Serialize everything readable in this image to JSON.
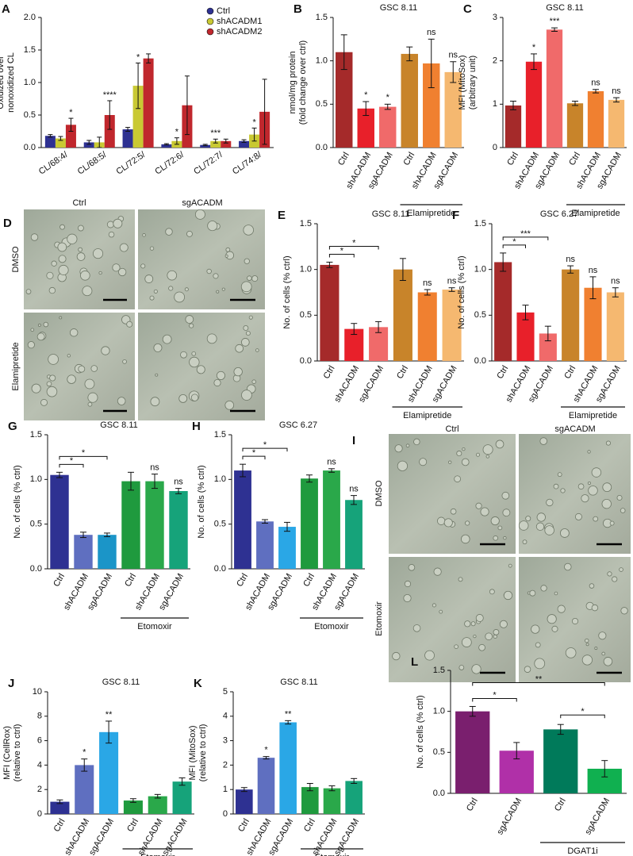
{
  "chart_data": [
    {
      "panel": "A",
      "type": "grouped-bar",
      "ylabel": [
        "Oxidized over",
        "nonoxidized CL"
      ],
      "categories": [
        "CL/68:4/",
        "CL/68:5/",
        "CL/72:5/",
        "CL/72:6/",
        "CL/72:7/",
        "CL/74:8/"
      ],
      "series": [
        {
          "name": "Ctrl",
          "color": "#2e3192",
          "values": [
            0.18,
            0.08,
            0.28,
            0.05,
            0.04,
            0.1
          ],
          "errors": [
            0.02,
            0.03,
            0.03,
            0.01,
            0.01,
            0.02
          ],
          "sig_labels": [
            null,
            null,
            null,
            null,
            null,
            null
          ]
        },
        {
          "name": "shACADM1",
          "color": "#c9c933",
          "values": [
            0.14,
            0.08,
            0.95,
            0.1,
            0.1,
            0.2
          ],
          "errors": [
            0.03,
            0.08,
            0.35,
            0.05,
            0.03,
            0.1
          ],
          "sig_labels": [
            null,
            null,
            "*",
            "*",
            "***",
            "*"
          ]
        },
        {
          "name": "shACADM2",
          "color": "#c0272d",
          "values": [
            0.35,
            0.5,
            1.37,
            0.65,
            0.1,
            0.55
          ],
          "errors": [
            0.1,
            0.22,
            0.07,
            0.45,
            0.03,
            0.5
          ],
          "sig_labels": [
            "*",
            "****",
            null,
            null,
            null,
            null
          ]
        }
      ],
      "ylim": [
        0,
        2
      ],
      "yticks": [
        {
          "value": 0,
          "label": "0.0"
        },
        0.5,
        {
          "value": 1,
          "label": "1.0"
        },
        1.5,
        {
          "value": 2,
          "label": "2.0"
        }
      ],
      "legend": "upper right"
    },
    {
      "panel": "B",
      "type": "bar",
      "title": "GSC 8.11",
      "ylabel": [
        "nmol/mg protein",
        "(fold change over ctrl)"
      ],
      "categories": [
        "Ctrl",
        "shACADM",
        "sgACADM",
        "Ctrl",
        "shACADM",
        "sgACADM"
      ],
      "values": [
        1.1,
        0.45,
        0.47,
        1.08,
        0.97,
        0.87
      ],
      "errors": [
        0.2,
        0.08,
        0.03,
        0.08,
        0.28,
        0.12
      ],
      "colors": [
        "#a52a2a",
        "#e8202a",
        "#f06a6a",
        "#c8842a",
        "#f08030",
        "#f5b870"
      ],
      "sig_labels": [
        null,
        "*",
        "*",
        null,
        "ns",
        "ns"
      ],
      "brackets": [],
      "group": {
        "label": "Elamipretide",
        "from": 3
      },
      "ylim": [
        0,
        1.5
      ],
      "yticks": [
        {
          "value": 0,
          "label": "0.0"
        },
        0.5,
        {
          "value": 1,
          "label": "1.0"
        },
        1.5
      ]
    },
    {
      "panel": "C",
      "type": "bar",
      "title": "GSC 8.11",
      "ylabel": [
        "MFI (MitoSox)",
        "(arbitrary unit)"
      ],
      "categories": [
        "Ctrl",
        "shACADM",
        "sgACADM",
        "Ctrl",
        "shACADM",
        "sgACADM"
      ],
      "values": [
        0.97,
        1.98,
        2.72,
        1.02,
        1.3,
        1.1
      ],
      "errors": [
        0.1,
        0.18,
        0.04,
        0.05,
        0.04,
        0.05
      ],
      "colors": [
        "#a52a2a",
        "#e8202a",
        "#f06a6a",
        "#c8842a",
        "#f08030",
        "#f5b870"
      ],
      "sig_labels": [
        null,
        "*",
        "***",
        null,
        "ns",
        "ns"
      ],
      "brackets": [],
      "group": {
        "label": "Elamipretide",
        "from": 3
      },
      "ylim": [
        0,
        3
      ],
      "yticks": [
        0,
        1,
        2,
        3
      ]
    },
    {
      "panel": "E",
      "type": "bar",
      "title": "GSC 8.11",
      "ylabel": [
        "No. of cells (% ctrl)"
      ],
      "categories": [
        "Ctrl",
        "shACADM",
        "sgACADM",
        "Ctrl",
        "shACADM",
        "sgACADM"
      ],
      "values": [
        1.05,
        0.35,
        0.37,
        1.0,
        0.75,
        0.78
      ],
      "errors": [
        0.03,
        0.06,
        0.06,
        0.12,
        0.03,
        0.02
      ],
      "colors": [
        "#a52a2a",
        "#e8202a",
        "#f06a6a",
        "#c8842a",
        "#f08030",
        "#f5b870"
      ],
      "sig_labels": [
        null,
        null,
        null,
        null,
        "ns",
        "ns"
      ],
      "brackets": [
        {
          "from": 0,
          "to": 1,
          "label": "*"
        },
        {
          "from": 0,
          "to": 2,
          "label": "*"
        }
      ],
      "group": {
        "label": "Elamipretide",
        "from": 3
      },
      "ylim": [
        0,
        1.5
      ],
      "yticks": [
        {
          "value": 0,
          "label": "0.0"
        },
        0.5,
        {
          "value": 1,
          "label": "1.0"
        },
        1.5
      ]
    },
    {
      "panel": "F",
      "type": "bar",
      "title": "GSC 6.27",
      "ylabel": [
        "No. of cells (% ctrl)"
      ],
      "categories": [
        "Ctrl",
        "shACADM",
        "sgACADM",
        "Ctrl",
        "shACADM",
        "sgACADM"
      ],
      "values": [
        1.08,
        0.53,
        0.3,
        1.0,
        0.8,
        0.75
      ],
      "errors": [
        0.1,
        0.08,
        0.08,
        0.04,
        0.12,
        0.05
      ],
      "colors": [
        "#a52a2a",
        "#e8202a",
        "#f06a6a",
        "#c8842a",
        "#f08030",
        "#f5b870"
      ],
      "sig_labels": [
        null,
        null,
        null,
        "ns",
        "ns",
        "ns"
      ],
      "brackets": [
        {
          "from": 0,
          "to": 1,
          "label": "*"
        },
        {
          "from": 0,
          "to": 2,
          "label": "***"
        }
      ],
      "group": {
        "label": "Elamipretide",
        "from": 3
      },
      "ylim": [
        0,
        1.5
      ],
      "yticks": [
        {
          "value": 0,
          "label": "0.0"
        },
        0.5,
        {
          "value": 1,
          "label": "1.0"
        },
        1.5
      ]
    },
    {
      "panel": "G",
      "type": "bar",
      "title": "GSC 8.11",
      "ylabel": [
        "No. of cells (% ctrl)"
      ],
      "categories": [
        "Ctrl",
        "shACADM",
        "sgACADM",
        "Ctrl",
        "shACADM",
        "sgACADM"
      ],
      "values": [
        1.05,
        0.38,
        0.38,
        0.98,
        0.98,
        0.87
      ],
      "errors": [
        0.03,
        0.03,
        0.02,
        0.1,
        0.08,
        0.03
      ],
      "colors": [
        "#2e3192",
        "#5f6fc0",
        "#1b95c8",
        "#1f9a3e",
        "#2aa84a",
        "#16a37a"
      ],
      "sig_labels": [
        null,
        null,
        null,
        null,
        "ns",
        "ns"
      ],
      "brackets": [
        {
          "from": 0,
          "to": 1,
          "label": "*"
        },
        {
          "from": 0,
          "to": 2,
          "label": "*"
        }
      ],
      "group": {
        "label": "Etomoxir",
        "from": 3
      },
      "ylim": [
        0,
        1.5
      ],
      "yticks": [
        {
          "value": 0,
          "label": "0.0"
        },
        0.5,
        {
          "value": 1,
          "label": "1.0"
        },
        1.5
      ]
    },
    {
      "panel": "H",
      "type": "bar",
      "title": "GSC 6.27",
      "ylabel": [
        "No. of cells (% ctrl)"
      ],
      "categories": [
        "Ctrl",
        "shACADM",
        "sgACADM",
        "Ctrl",
        "shACADM",
        "sgACADM"
      ],
      "values": [
        1.1,
        0.53,
        0.47,
        1.01,
        1.1,
        0.77
      ],
      "errors": [
        0.07,
        0.02,
        0.05,
        0.04,
        0.02,
        0.05
      ],
      "colors": [
        "#2e3192",
        "#5f6fc0",
        "#2aa7e6",
        "#1f9a3e",
        "#2aa84a",
        "#16a37a"
      ],
      "sig_labels": [
        null,
        null,
        null,
        null,
        "ns",
        "ns"
      ],
      "brackets": [
        {
          "from": 0,
          "to": 1,
          "label": "*"
        },
        {
          "from": 0,
          "to": 2,
          "label": "*"
        }
      ],
      "group": {
        "label": "Etomoxir",
        "from": 3
      },
      "ylim": [
        0,
        1.5
      ],
      "yticks": [
        {
          "value": 0,
          "label": "0.0"
        },
        0.5,
        {
          "value": 1,
          "label": "1.0"
        },
        1.5
      ]
    },
    {
      "panel": "J",
      "type": "bar",
      "title": "GSC 8.11",
      "ylabel": [
        "MFI (CellRox)",
        "(relative to ctrl)"
      ],
      "categories": [
        "Ctrl",
        "shACADM",
        "sgACADM",
        "Ctrl",
        "shACADM",
        "sgACADM"
      ],
      "values": [
        1.0,
        4.0,
        6.7,
        1.1,
        1.45,
        2.65
      ],
      "errors": [
        0.15,
        0.5,
        0.9,
        0.15,
        0.15,
        0.3
      ],
      "colors": [
        "#2e3192",
        "#5f6fc0",
        "#2aa7e6",
        "#1f9a3e",
        "#2aa84a",
        "#16a37a"
      ],
      "sig_labels": [
        null,
        "*",
        "**",
        null,
        null,
        null
      ],
      "brackets": [],
      "group": {
        "label": "Etomoxir",
        "from": 3
      },
      "ylim": [
        0,
        10
      ],
      "yticks": [
        0,
        2,
        4,
        6,
        8,
        10
      ]
    },
    {
      "panel": "K",
      "type": "bar",
      "title": "GSC 8.11",
      "ylabel": [
        "MFI (MitoSox)",
        "(relative to ctrl)"
      ],
      "categories": [
        "Ctrl",
        "shACADM",
        "sgACADM",
        "Ctrl",
        "shACADM",
        "sgACADM"
      ],
      "values": [
        1.0,
        2.3,
        3.75,
        1.1,
        1.05,
        1.35
      ],
      "errors": [
        0.08,
        0.05,
        0.07,
        0.15,
        0.1,
        0.1
      ],
      "colors": [
        "#2e3192",
        "#5f6fc0",
        "#2aa7e6",
        "#1f9a3e",
        "#2aa84a",
        "#16a37a"
      ],
      "sig_labels": [
        null,
        "*",
        "**",
        null,
        null,
        null
      ],
      "brackets": [],
      "group": {
        "label": "Etomoxir",
        "from": 3
      },
      "ylim": [
        0,
        5
      ],
      "yticks": [
        0,
        1,
        2,
        3,
        4,
        5
      ]
    },
    {
      "panel": "L",
      "type": "bar",
      "ylabel": [
        "No. of cells (% ctrl)"
      ],
      "categories": [
        "Ctrl",
        "sgACADM",
        "Ctrl",
        "sgACADM"
      ],
      "values": [
        1.0,
        0.52,
        0.78,
        0.3
      ],
      "errors": [
        0.06,
        0.1,
        0.06,
        0.1
      ],
      "colors": [
        "#7a1f6e",
        "#b030a8",
        "#007a5a",
        "#10b050"
      ],
      "sig_labels": [
        null,
        null,
        null,
        null
      ],
      "brackets": [
        {
          "from": 0,
          "to": 1,
          "label": "*"
        },
        {
          "from": 0,
          "to": 3,
          "label": "**"
        },
        {
          "from": 2,
          "to": 3,
          "label": "*"
        }
      ],
      "group": {
        "label": "DGAT1i",
        "from": 2
      },
      "ylim": [
        0,
        1.5
      ],
      "yticks": [
        {
          "value": 0,
          "label": "0.0"
        },
        0.5,
        {
          "value": 1,
          "label": "1.0"
        },
        1.5
      ]
    }
  ],
  "image_panels": [
    {
      "panel": "D",
      "columns": [
        "Ctrl",
        "sgACADM"
      ],
      "rows": [
        "DMSO",
        "Elamipretide"
      ]
    },
    {
      "panel": "I",
      "columns": [
        "Ctrl",
        "sgACADM"
      ],
      "rows": [
        "DMSO",
        "Etomoxir"
      ]
    }
  ]
}
